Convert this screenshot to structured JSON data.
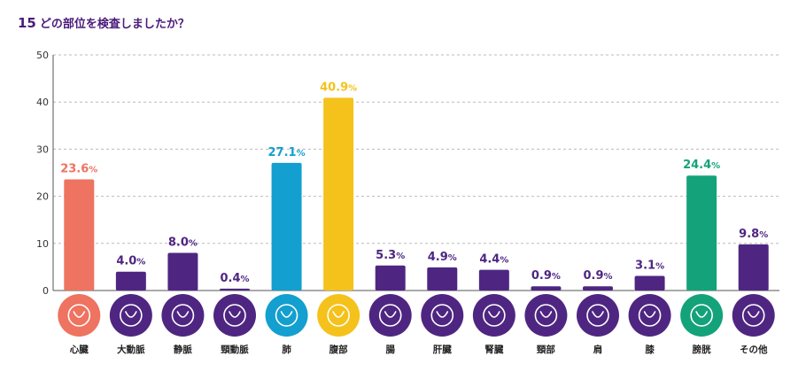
{
  "title": {
    "number": "15",
    "text": "どの部位を検査しましたか？"
  },
  "chart_data": {
    "type": "bar",
    "categories": [
      "心臓",
      "大動脈",
      "静脈",
      "頸動脈",
      "肺",
      "腹部",
      "腸",
      "肝臓",
      "腎臓",
      "頸部",
      "肩",
      "膝",
      "膀胱",
      "その他"
    ],
    "values": [
      23.6,
      4.0,
      8.0,
      0.4,
      27.1,
      40.9,
      5.3,
      4.9,
      4.4,
      0.9,
      0.9,
      3.1,
      24.4,
      9.8
    ],
    "value_labels": [
      "23.6",
      "4.0",
      "8.0",
      "0.4",
      "27.1",
      "40.9",
      "5.3",
      "4.9",
      "4.4",
      "0.9",
      "0.9",
      "3.1",
      "24.4",
      "9.8"
    ],
    "unit": "%",
    "ylim": [
      0,
      50
    ],
    "yticks": [
      0,
      10,
      20,
      30,
      40,
      50
    ],
    "grid": true,
    "colors": [
      "#ee7360",
      "#4e2682",
      "#4e2682",
      "#4e2682",
      "#139fcf",
      "#f5c21b",
      "#4e2682",
      "#4e2682",
      "#4e2682",
      "#4e2682",
      "#4e2682",
      "#4e2682",
      "#14a27a",
      "#4e2682"
    ],
    "icons": [
      "heart-icon",
      "aorta-icon",
      "vein-icon",
      "carotid-artery-icon",
      "lungs-icon",
      "abdomen-icon",
      "intestine-icon",
      "liver-icon",
      "kidneys-icon",
      "neck-icon",
      "shoulder-icon",
      "knee-icon",
      "bladder-icon",
      "other-icon"
    ]
  }
}
